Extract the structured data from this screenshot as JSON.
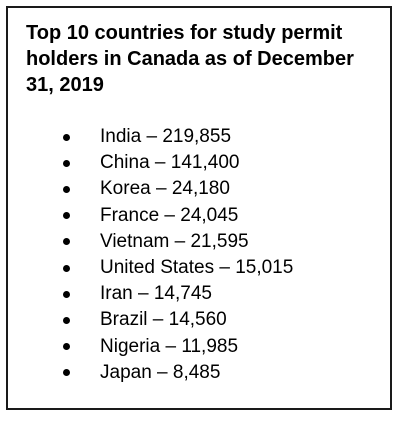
{
  "title": "Top 10 countries for study permit holders in Canada as of December 31, 2019",
  "items": [
    "India – 219,855",
    "China – 141,400",
    "Korea – 24,180",
    "France – 24,045",
    "Vietnam – 21,595",
    "United States – 15,015",
    "Iran – 14,745",
    "Brazil – 14,560",
    "Nigeria – 11,985",
    "Japan – 8,485"
  ]
}
